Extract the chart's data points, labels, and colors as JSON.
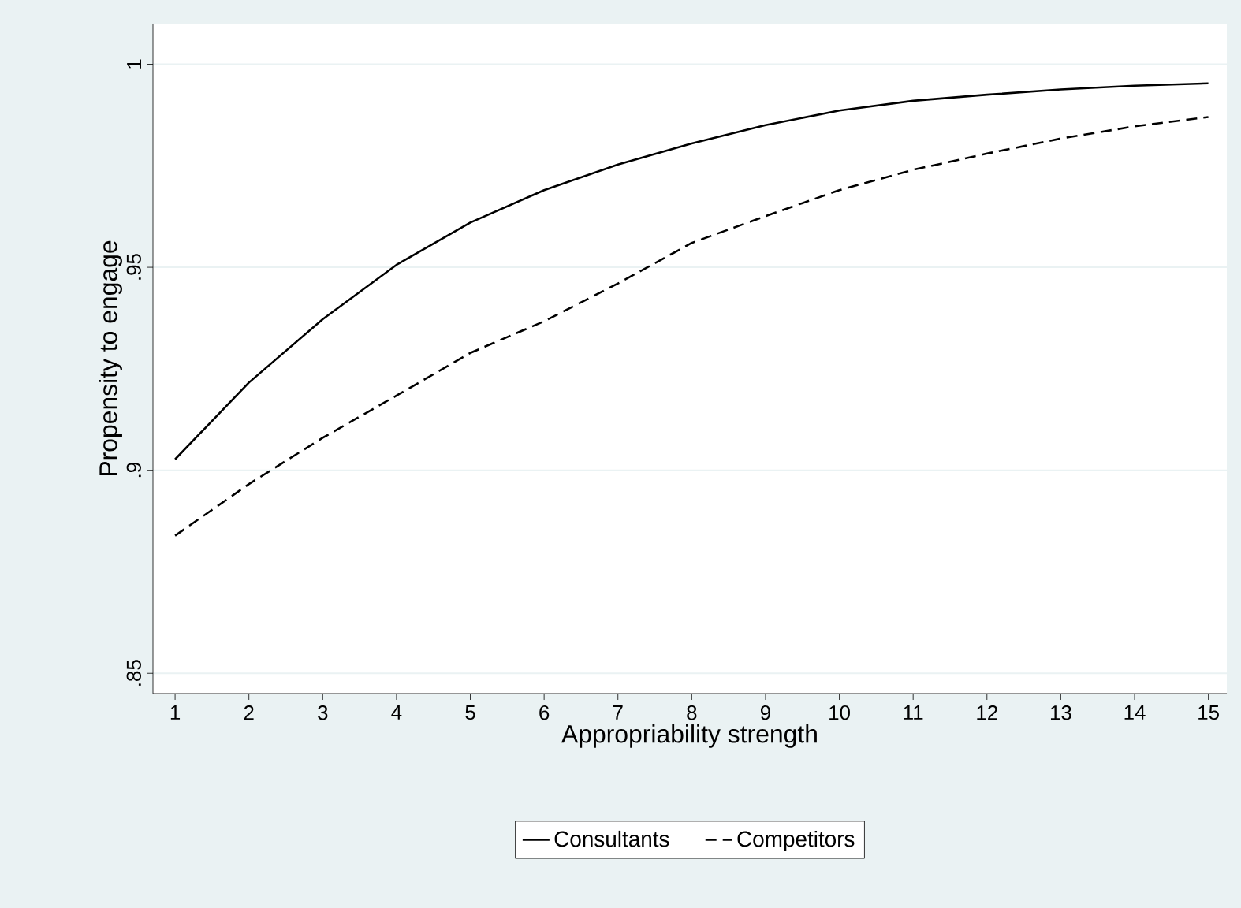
{
  "chart_data": {
    "type": "line",
    "xlabel": "Appropriability strength",
    "ylabel": "Propensity to engage",
    "x": [
      1,
      2,
      3,
      4,
      5,
      6,
      7,
      8,
      9,
      10,
      11,
      12,
      13,
      14,
      15
    ],
    "series": [
      {
        "name": "Consultants",
        "color": "#000000",
        "line_style": "solid",
        "values": [
          0.9027,
          0.9216,
          0.9372,
          0.9506,
          0.961,
          0.969,
          0.9753,
          0.9805,
          0.985,
          0.9886,
          0.991,
          0.9925,
          0.9938,
          0.9947,
          0.9953
        ]
      },
      {
        "name": "Competitors",
        "color": "#000000",
        "line_style": "dashed",
        "values": [
          0.8839,
          0.8966,
          0.908,
          0.9184,
          0.9289,
          0.9367,
          0.946,
          0.956,
          0.9626,
          0.969,
          0.974,
          0.978,
          0.9817,
          0.9847,
          0.987
        ]
      }
    ],
    "xlim": [
      0.7,
      15.25
    ],
    "ylim": [
      0.845,
      1.01
    ],
    "xticks": [
      1,
      2,
      3,
      4,
      5,
      6,
      7,
      8,
      9,
      10,
      11,
      12,
      13,
      14,
      15
    ],
    "yticks": [
      {
        "value": 0.85,
        "label": ".85"
      },
      {
        "value": 0.9,
        "label": ".9"
      },
      {
        "value": 0.95,
        "label": ".95"
      },
      {
        "value": 1,
        "label": "1"
      }
    ],
    "grid": "y",
    "legend": "bottom",
    "marker": "none"
  }
}
